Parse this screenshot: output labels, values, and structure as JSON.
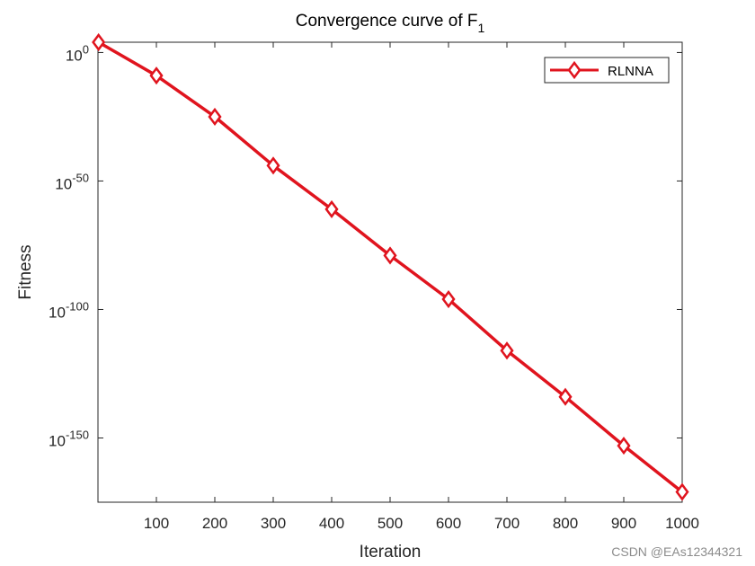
{
  "chart_data": {
    "type": "line",
    "title": "Convergence curve of F",
    "title_subscript": "1",
    "xlabel": "Iteration",
    "ylabel": "Fitness",
    "xlim": [
      0,
      1000
    ],
    "ylim_exponent": [
      -175,
      4
    ],
    "y_scale": "log",
    "x_ticks": [
      100,
      200,
      300,
      400,
      500,
      600,
      700,
      800,
      900,
      1000
    ],
    "y_ticks": [
      {
        "base": "10",
        "exp": "0",
        "value_exp": 0
      },
      {
        "base": "10",
        "exp": "-50",
        "value_exp": -50
      },
      {
        "base": "10",
        "exp": "-100",
        "value_exp": -100
      },
      {
        "base": "10",
        "exp": "-150",
        "value_exp": -150
      }
    ],
    "grid": false,
    "legend_position": "top-right",
    "series": [
      {
        "name": "RLNNA",
        "color": "#e0141e",
        "marker": "diamond",
        "x": [
          1,
          100,
          200,
          300,
          400,
          500,
          600,
          700,
          800,
          900,
          1000
        ],
        "log10_y": [
          4,
          -9,
          -25,
          -44,
          -61,
          -79,
          -96,
          -116,
          -134,
          -153,
          -171
        ]
      }
    ]
  },
  "watermark": "CSDN @EAs12344321"
}
